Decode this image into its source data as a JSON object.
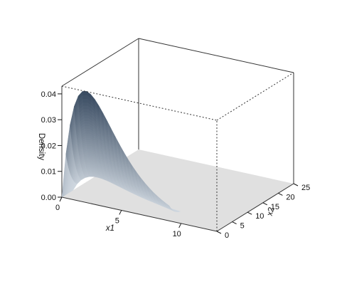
{
  "chart_data": {
    "type": "surface3d",
    "title": "",
    "xlabel": "x1",
    "ylabel": "x2",
    "zlabel": "Density",
    "xlim": [
      0,
      13
    ],
    "ylim": [
      0,
      25
    ],
    "zlim": [
      0,
      0.043
    ],
    "x_ticks": [
      0,
      5,
      10
    ],
    "y_ticks": [
      0,
      5,
      10,
      15,
      20,
      25
    ],
    "z_ticks": [
      0.0,
      0.01,
      0.02,
      0.03,
      0.04
    ],
    "x_tick_labels": [
      "0",
      "5",
      "10"
    ],
    "y_tick_labels": [
      "0",
      "5",
      "10",
      "15",
      "20",
      "25"
    ],
    "z_tick_labels": [
      "0.00",
      "0.01",
      "0.02",
      "0.03",
      "0.04"
    ],
    "peak": {
      "x1": 2.5,
      "x2": 0,
      "density": 0.042
    },
    "colors": {
      "floor": "#e0e0e0",
      "surface_low": "#d4dce4",
      "surface_high": "#3a4c62",
      "box": "#333333"
    }
  }
}
